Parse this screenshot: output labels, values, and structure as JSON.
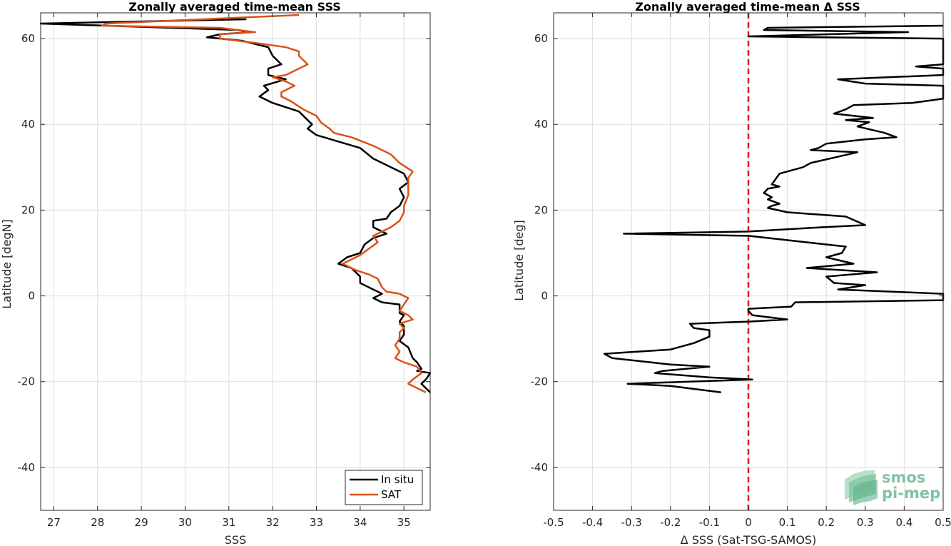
{
  "colors": {
    "insitu": "#000000",
    "sat": "#d95319",
    "zero_line": "#e41a1c",
    "logo": "#7fc4a0"
  },
  "logo": {
    "line1": "smos",
    "line2": "pi-mep"
  },
  "chart_data": [
    {
      "type": "line",
      "title": "Zonally averaged time-mean SSS",
      "xlabel": "SSS",
      "ylabel": "Latitude [degN]",
      "xlim": [
        26.7,
        35.6
      ],
      "ylim": [
        -50,
        66
      ],
      "xticks": [
        27,
        28,
        29,
        30,
        31,
        32,
        33,
        34,
        35
      ],
      "yticks": [
        -40,
        -20,
        0,
        20,
        40,
        60
      ],
      "grid": true,
      "legend": {
        "placement": "bottom-right",
        "entries": [
          "In situ",
          "SAT"
        ]
      },
      "series": [
        {
          "name": "In situ",
          "color_key": "insitu",
          "points": [
            [
              31.4,
              64.5
            ],
            [
              26.7,
              63.5
            ],
            [
              31.2,
              62.0
            ],
            [
              31.5,
              61.5
            ],
            [
              30.8,
              61.0
            ],
            [
              30.5,
              60.3
            ],
            [
              31.3,
              59.5
            ],
            [
              31.9,
              58.0
            ],
            [
              32.0,
              56.0
            ],
            [
              32.2,
              54.0
            ],
            [
              31.9,
              53.0
            ],
            [
              31.9,
              51.5
            ],
            [
              32.3,
              50.5
            ],
            [
              31.8,
              49.0
            ],
            [
              31.9,
              48.0
            ],
            [
              31.7,
              46.5
            ],
            [
              32.0,
              45.0
            ],
            [
              32.6,
              43.0
            ],
            [
              32.8,
              41.0
            ],
            [
              32.9,
              40.0
            ],
            [
              32.8,
              39.0
            ],
            [
              33.0,
              37.5
            ],
            [
              33.5,
              36.0
            ],
            [
              34.0,
              34.5
            ],
            [
              34.3,
              32.0
            ],
            [
              34.6,
              30.5
            ],
            [
              35.0,
              28.5
            ],
            [
              35.1,
              26.5
            ],
            [
              34.9,
              25.0
            ],
            [
              35.0,
              23.0
            ],
            [
              34.9,
              21.0
            ],
            [
              34.7,
              19.5
            ],
            [
              34.6,
              18.0
            ],
            [
              34.3,
              17.5
            ],
            [
              34.3,
              16.0
            ],
            [
              34.6,
              14.5
            ],
            [
              34.3,
              13.5
            ],
            [
              34.1,
              12.0
            ],
            [
              34.0,
              10.0
            ],
            [
              33.7,
              9.0
            ],
            [
              33.5,
              7.5
            ],
            [
              33.8,
              6.5
            ],
            [
              34.0,
              4.5
            ],
            [
              34.0,
              3.0
            ],
            [
              34.2,
              2.0
            ],
            [
              34.5,
              0.5
            ],
            [
              34.3,
              -0.5
            ],
            [
              34.5,
              -1.5
            ],
            [
              34.9,
              -2.0
            ],
            [
              34.9,
              -4.0
            ],
            [
              35.0,
              -4.5
            ],
            [
              34.9,
              -6.0
            ],
            [
              35.0,
              -7.0
            ],
            [
              35.0,
              -9.0
            ],
            [
              34.9,
              -10.5
            ],
            [
              35.1,
              -12.0
            ],
            [
              35.2,
              -14.5
            ],
            [
              35.3,
              -15.5
            ],
            [
              35.4,
              -17.0
            ],
            [
              35.3,
              -17.5
            ],
            [
              35.6,
              -18.0
            ],
            [
              35.5,
              -19.5
            ],
            [
              35.4,
              -20.5
            ],
            [
              35.6,
              -22.5
            ]
          ]
        },
        {
          "name": "SAT",
          "color_key": "sat",
          "points": [
            [
              32.6,
              65.5
            ],
            [
              28.2,
              63.5
            ],
            [
              28.1,
              63.0
            ],
            [
              30.8,
              62.5
            ],
            [
              31.6,
              61.5
            ],
            [
              30.8,
              61.0
            ],
            [
              30.8,
              60.0
            ],
            [
              31.6,
              59.0
            ],
            [
              32.3,
              58.0
            ],
            [
              32.6,
              57.0
            ],
            [
              32.6,
              56.0
            ],
            [
              32.8,
              54.0
            ],
            [
              32.6,
              53.0
            ],
            [
              32.3,
              51.5
            ],
            [
              32.0,
              51.0
            ],
            [
              32.3,
              50.0
            ],
            [
              32.5,
              49.0
            ],
            [
              32.2,
              47.5
            ],
            [
              32.2,
              46.5
            ],
            [
              32.4,
              45.5
            ],
            [
              32.7,
              43.5
            ],
            [
              33.0,
              42.0
            ],
            [
              33.1,
              40.5
            ],
            [
              33.3,
              39.0
            ],
            [
              33.4,
              38.0
            ],
            [
              33.8,
              37.0
            ],
            [
              34.3,
              35.0
            ],
            [
              34.7,
              33.0
            ],
            [
              34.9,
              31.0
            ],
            [
              35.2,
              29.0
            ],
            [
              35.1,
              27.5
            ],
            [
              35.1,
              25.5
            ],
            [
              35.1,
              23.5
            ],
            [
              35.0,
              21.0
            ],
            [
              35.0,
              19.5
            ],
            [
              34.9,
              17.5
            ],
            [
              34.7,
              16.0
            ],
            [
              34.5,
              15.0
            ],
            [
              34.3,
              14.0
            ],
            [
              34.4,
              12.5
            ],
            [
              34.2,
              11.0
            ],
            [
              34.0,
              9.5
            ],
            [
              33.8,
              8.5
            ],
            [
              33.6,
              7.5
            ],
            [
              33.9,
              6.0
            ],
            [
              34.2,
              5.0
            ],
            [
              34.4,
              4.0
            ],
            [
              34.5,
              2.0
            ],
            [
              34.6,
              1.0
            ],
            [
              34.9,
              0.5
            ],
            [
              35.1,
              -0.5
            ],
            [
              35.0,
              -2.0
            ],
            [
              34.9,
              -3.5
            ],
            [
              35.1,
              -4.5
            ],
            [
              35.2,
              -5.5
            ],
            [
              34.9,
              -6.5
            ],
            [
              35.0,
              -7.5
            ],
            [
              34.9,
              -8.5
            ],
            [
              34.9,
              -10.0
            ],
            [
              34.8,
              -11.5
            ],
            [
              34.9,
              -13.0
            ],
            [
              34.8,
              -14.5
            ],
            [
              35.0,
              -15.5
            ],
            [
              35.3,
              -16.5
            ],
            [
              35.4,
              -18.0
            ],
            [
              35.2,
              -19.5
            ],
            [
              35.1,
              -20.5
            ],
            [
              35.5,
              -22.5
            ]
          ]
        }
      ]
    },
    {
      "type": "line",
      "title": "Zonally averaged time-mean Δ SSS",
      "xlabel": "Δ SSS (Sat-TSG-SAMOS)",
      "ylabel": "Latitude [deg]",
      "xlim": [
        -0.5,
        0.5
      ],
      "ylim": [
        -50,
        66
      ],
      "xticks": [
        -0.5,
        -0.4,
        -0.3,
        -0.2,
        -0.1,
        0,
        0.1,
        0.2,
        0.3,
        0.4,
        0.5
      ],
      "yticks": [
        -40,
        -20,
        0,
        20,
        40,
        60
      ],
      "grid": true,
      "reference_line": {
        "x": 0,
        "style": "dashed",
        "color_key": "zero_line"
      },
      "series": [
        {
          "color_key": "insitu",
          "points": [
            [
              0.5,
              63.0
            ],
            [
              0.05,
              62.5
            ],
            [
              0.04,
              62.0
            ],
            [
              0.41,
              61.5
            ],
            [
              0.0,
              60.5
            ],
            [
              0.5,
              60.0
            ],
            [
              0.5,
              58.5
            ],
            [
              0.5,
              54.0
            ],
            [
              0.43,
              53.5
            ],
            [
              0.5,
              53.0
            ],
            [
              0.5,
              51.5
            ],
            [
              0.23,
              50.5
            ],
            [
              0.3,
              49.5
            ],
            [
              0.5,
              49.0
            ],
            [
              0.5,
              46.0
            ],
            [
              0.46,
              45.5
            ],
            [
              0.42,
              45.0
            ],
            [
              0.27,
              44.5
            ],
            [
              0.25,
              43.5
            ],
            [
              0.22,
              42.5
            ],
            [
              0.32,
              41.5
            ],
            [
              0.25,
              41.0
            ],
            [
              0.31,
              40.5
            ],
            [
              0.28,
              39.5
            ],
            [
              0.35,
              38.0
            ],
            [
              0.38,
              37.0
            ],
            [
              0.3,
              36.5
            ],
            [
              0.2,
              35.5
            ],
            [
              0.18,
              34.5
            ],
            [
              0.16,
              34.0
            ],
            [
              0.28,
              33.5
            ],
            [
              0.16,
              31.0
            ],
            [
              0.14,
              30.0
            ],
            [
              0.1,
              29.0
            ],
            [
              0.08,
              28.5
            ],
            [
              0.06,
              26.0
            ],
            [
              0.08,
              25.5
            ],
            [
              0.05,
              25.0
            ],
            [
              0.04,
              24.0
            ],
            [
              0.06,
              23.0
            ],
            [
              0.05,
              22.5
            ],
            [
              0.08,
              21.5
            ],
            [
              0.06,
              21.0
            ],
            [
              0.05,
              20.5
            ],
            [
              0.1,
              19.5
            ],
            [
              0.25,
              18.5
            ],
            [
              0.3,
              16.5
            ],
            [
              0.19,
              16.0
            ],
            [
              0.0,
              15.0
            ],
            [
              -0.32,
              14.5
            ],
            [
              0.0,
              14.0
            ],
            [
              0.15,
              12.5
            ],
            [
              0.25,
              11.5
            ],
            [
              0.24,
              10.0
            ],
            [
              0.2,
              9.0
            ],
            [
              0.27,
              7.5
            ],
            [
              0.15,
              6.5
            ],
            [
              0.33,
              5.5
            ],
            [
              0.2,
              4.5
            ],
            [
              0.22,
              3.0
            ],
            [
              0.3,
              2.5
            ],
            [
              0.23,
              1.5
            ],
            [
              0.5,
              0.5
            ],
            [
              0.5,
              -1.0
            ],
            [
              0.12,
              -1.5
            ],
            [
              0.11,
              -2.5
            ],
            [
              0.0,
              -3.0
            ],
            [
              0.0,
              -3.5
            ],
            [
              0.01,
              -4.5
            ],
            [
              0.1,
              -5.5
            ],
            [
              0.0,
              -6.0
            ],
            [
              -0.15,
              -6.5
            ],
            [
              -0.14,
              -7.5
            ],
            [
              -0.1,
              -8.0
            ],
            [
              -0.1,
              -9.5
            ],
            [
              -0.14,
              -11.0
            ],
            [
              -0.2,
              -12.5
            ],
            [
              -0.37,
              -13.5
            ],
            [
              -0.35,
              -14.5
            ],
            [
              -0.2,
              -16.0
            ],
            [
              -0.1,
              -16.5
            ],
            [
              -0.22,
              -17.5
            ],
            [
              -0.24,
              -18.0
            ],
            [
              -0.1,
              -19.0
            ],
            [
              0.01,
              -19.5
            ],
            [
              -0.31,
              -20.5
            ],
            [
              -0.2,
              -21.0
            ],
            [
              -0.07,
              -22.5
            ]
          ]
        }
      ]
    }
  ]
}
